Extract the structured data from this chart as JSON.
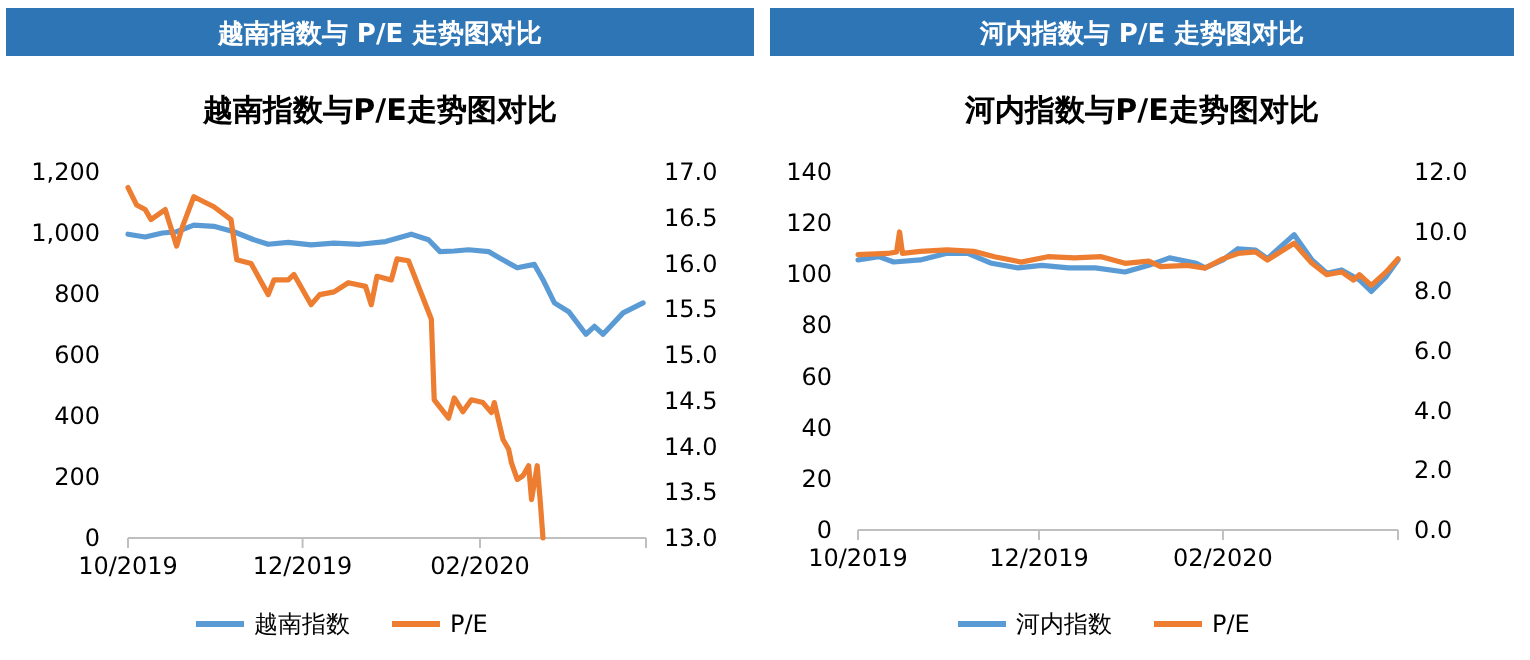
{
  "chart_data": [
    {
      "type": "line",
      "title": "越南指数与 P/E 走势图对比",
      "subtitle": "越南指数与P/E走势图对比",
      "legend": "bottom",
      "xlim": [
        "2019-10-01",
        "2020-03-30"
      ],
      "xticks": [
        {
          "value": "2019-10-01",
          "label": "10/2019"
        },
        {
          "value": "2019-12-01",
          "label": "12/2019"
        },
        {
          "value": "2020-02-01",
          "label": "02/2020"
        }
      ],
      "ylim": [
        0,
        1200
      ],
      "yticks": [
        0,
        200,
        400,
        600,
        800,
        {
          "value": 1000,
          "label": "1,000"
        },
        {
          "value": 1200,
          "label": "1,200"
        }
      ],
      "y2lim": [
        13,
        17
      ],
      "y2ticks": [
        {
          "value": 13,
          "label": "13.0"
        },
        {
          "value": 13.5,
          "label": "13.5"
        },
        {
          "value": 14,
          "label": "14.0"
        },
        {
          "value": 14.5,
          "label": "14.5"
        },
        {
          "value": 15,
          "label": "15.0"
        },
        {
          "value": 15.5,
          "label": "15.5"
        },
        {
          "value": 16,
          "label": "16.0"
        },
        {
          "value": 16.5,
          "label": "16.5"
        },
        {
          "value": 17,
          "label": "17.0"
        }
      ],
      "series": [
        {
          "name": "越南指数",
          "color": "#5b9bd5",
          "x": [
            "2019-10-01",
            "2019-10-07",
            "2019-10-13",
            "2019-10-18",
            "2019-10-24",
            "2019-10-31",
            "2019-11-07",
            "2019-11-14",
            "2019-11-19",
            "2019-11-26",
            "2019-12-04",
            "2019-12-12",
            "2019-12-21",
            "2019-12-30",
            "2020-01-08",
            "2020-01-14",
            "2020-01-18",
            "2020-01-23",
            "2020-01-28",
            "2020-02-04",
            "2020-02-08",
            "2020-02-14",
            "2020-02-20",
            "2020-02-23",
            "2020-02-27",
            "2020-03-03",
            "2020-03-09",
            "2020-03-12",
            "2020-03-15",
            "2020-03-22",
            "2020-03-29"
          ],
          "values": [
            996,
            987,
            1000,
            1004,
            1026,
            1022,
            1004,
            978,
            963,
            969,
            961,
            967,
            963,
            972,
            996,
            978,
            939,
            941,
            945,
            939,
            917,
            886,
            897,
            847,
            771,
            742,
            668,
            694,
            668,
            738,
            771
          ]
        },
        {
          "name": "P/E",
          "color": "#ed7d31",
          "axis": "y2",
          "x": [
            "2019-10-01",
            "2019-10-04",
            "2019-10-07",
            "2019-10-09",
            "2019-10-14",
            "2019-10-18",
            "2019-10-20",
            "2019-10-24",
            "2019-10-31",
            "2019-11-06",
            "2019-11-07",
            "2019-11-08",
            "2019-11-13",
            "2019-11-19",
            "2019-11-21",
            "2019-11-26",
            "2019-11-28",
            "2019-12-04",
            "2019-12-07",
            "2019-12-12",
            "2019-12-17",
            "2019-12-23",
            "2019-12-25",
            "2019-12-27",
            "2020-01-01",
            "2020-01-03",
            "2020-01-07",
            "2020-01-15",
            "2020-01-16",
            "2020-01-21",
            "2020-01-23",
            "2020-01-26",
            "2020-01-29",
            "2020-02-02",
            "2020-02-05",
            "2020-02-06",
            "2020-02-09",
            "2020-02-11",
            "2020-02-12",
            "2020-02-14",
            "2020-02-16",
            "2020-02-18",
            "2020-02-19",
            "2020-02-21",
            "2020-02-22",
            "2020-02-23"
          ],
          "values": [
            16.83,
            16.64,
            16.59,
            16.48,
            16.59,
            16.19,
            16.4,
            16.73,
            16.62,
            16.48,
            16.26,
            16.04,
            16.0,
            15.66,
            15.82,
            15.82,
            15.88,
            15.55,
            15.66,
            15.69,
            15.79,
            15.75,
            15.55,
            15.86,
            15.82,
            16.05,
            16.03,
            15.39,
            14.51,
            14.31,
            14.53,
            14.38,
            14.51,
            14.48,
            14.37,
            14.48,
            14.08,
            13.97,
            13.82,
            13.64,
            13.68,
            13.79,
            13.42,
            13.79,
            13.42,
            13.0
          ]
        }
      ]
    },
    {
      "type": "line",
      "title": "河内指数与 P/E 走势图对比",
      "subtitle": "河内指数与P/E走势图对比",
      "legend": "bottom",
      "xlim": [
        "2019-10-01",
        "2020-03-31"
      ],
      "xticks": [
        {
          "value": "2019-10-01",
          "label": "10/2019"
        },
        {
          "value": "2019-12-01",
          "label": "12/2019"
        },
        {
          "value": "2020-02-01",
          "label": "02/2020"
        }
      ],
      "ylim": [
        0,
        140
      ],
      "yticks": [
        0,
        20,
        40,
        60,
        80,
        100,
        120,
        140
      ],
      "y2lim": [
        0,
        12
      ],
      "y2ticks": [
        {
          "value": 0,
          "label": "0.0"
        },
        {
          "value": 2,
          "label": "2.0"
        },
        {
          "value": 4,
          "label": "4.0"
        },
        {
          "value": 6,
          "label": "6.0"
        },
        {
          "value": 8,
          "label": "8.0"
        },
        {
          "value": 10,
          "label": "10.0"
        },
        {
          "value": 12,
          "label": "12.0"
        }
      ],
      "series": [
        {
          "name": "河内指数",
          "color": "#5b9bd5",
          "x": [
            "2019-10-01",
            "2019-10-08",
            "2019-10-13",
            "2019-10-22",
            "2019-10-31",
            "2019-11-07",
            "2019-11-15",
            "2019-11-24",
            "2019-12-02",
            "2019-12-11",
            "2019-12-20",
            "2019-12-30",
            "2020-01-07",
            "2020-01-14",
            "2020-01-23",
            "2020-01-26",
            "2020-02-01",
            "2020-02-06",
            "2020-02-12",
            "2020-02-16",
            "2020-02-20",
            "2020-02-25",
            "2020-03-02",
            "2020-03-07",
            "2020-03-12",
            "2020-03-18",
            "2020-03-22",
            "2020-03-27",
            "2020-03-31"
          ],
          "values": [
            105.6,
            106.9,
            104.8,
            105.6,
            108.2,
            108.2,
            104.3,
            102.5,
            103.5,
            102.5,
            102.5,
            100.9,
            103.5,
            106.4,
            104.3,
            102.5,
            105.6,
            110.0,
            109.5,
            106.1,
            110.3,
            115.5,
            105.6,
            100.4,
            101.7,
            97.8,
            93.3,
            99.1,
            105.6
          ]
        },
        {
          "name": "P/E",
          "color": "#ed7d31",
          "axis": "y2",
          "x": [
            "2019-10-01",
            "2019-10-11",
            "2019-10-14",
            "2019-10-15",
            "2019-10-16",
            "2019-10-22",
            "2019-10-31",
            "2019-11-09",
            "2019-11-16",
            "2019-11-25",
            "2019-12-04",
            "2019-12-13",
            "2019-12-22",
            "2019-12-30",
            "2020-01-07",
            "2020-01-11",
            "2020-01-20",
            "2020-01-26",
            "2020-02-01",
            "2020-02-06",
            "2020-02-12",
            "2020-02-16",
            "2020-02-25",
            "2020-03-02",
            "2020-03-07",
            "2020-03-12",
            "2020-03-16",
            "2020-03-18",
            "2020-03-22",
            "2020-03-27",
            "2020-03-31"
          ],
          "values": [
            9.23,
            9.27,
            9.32,
            9.99,
            9.27,
            9.34,
            9.39,
            9.34,
            9.16,
            8.98,
            9.16,
            9.12,
            9.16,
            8.94,
            9.01,
            8.83,
            8.87,
            8.78,
            9.09,
            9.27,
            9.32,
            9.05,
            9.61,
            8.94,
            8.56,
            8.65,
            8.38,
            8.56,
            8.2,
            8.65,
            9.09
          ]
        }
      ]
    }
  ]
}
